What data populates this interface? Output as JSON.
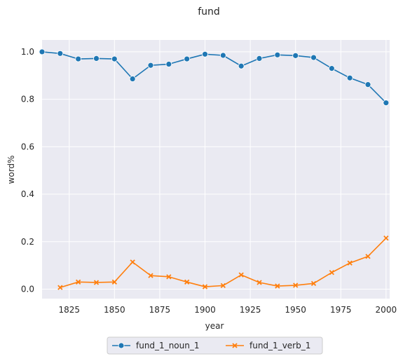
{
  "chart_data": {
    "type": "line",
    "title": "fund",
    "xlabel": "year",
    "ylabel": "word%",
    "xlim": [
      1810,
      2002
    ],
    "ylim": [
      -0.04,
      1.05
    ],
    "xticks": [
      1825,
      1850,
      1875,
      1900,
      1925,
      1950,
      1975,
      2000
    ],
    "yticks": [
      0.0,
      0.2,
      0.4,
      0.6,
      0.8,
      1.0
    ],
    "grid": true,
    "legend_placement": "bottom-center",
    "series": [
      {
        "name": "fund_1_noun_1",
        "color": "#1f77b4",
        "marker": "circle",
        "x": [
          1810,
          1820,
          1830,
          1840,
          1850,
          1860,
          1870,
          1880,
          1890,
          1900,
          1910,
          1920,
          1930,
          1940,
          1950,
          1960,
          1970,
          1980,
          1990,
          2000
        ],
        "values": [
          1.0,
          0.993,
          0.97,
          0.972,
          0.97,
          0.886,
          0.943,
          0.948,
          0.97,
          0.99,
          0.985,
          0.94,
          0.972,
          0.987,
          0.984,
          0.976,
          0.93,
          0.89,
          0.862,
          0.785
        ]
      },
      {
        "name": "fund_1_verb_1",
        "color": "#ff7f0e",
        "marker": "x",
        "x": [
          1820,
          1830,
          1840,
          1850,
          1860,
          1870,
          1880,
          1890,
          1900,
          1910,
          1920,
          1930,
          1940,
          1950,
          1960,
          1970,
          1980,
          1990,
          2000
        ],
        "values": [
          0.007,
          0.03,
          0.028,
          0.03,
          0.114,
          0.057,
          0.052,
          0.03,
          0.01,
          0.015,
          0.06,
          0.028,
          0.013,
          0.016,
          0.024,
          0.07,
          0.11,
          0.138,
          0.215
        ]
      }
    ]
  }
}
